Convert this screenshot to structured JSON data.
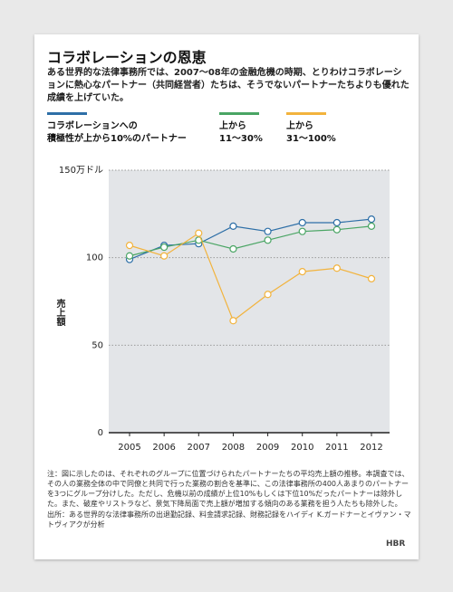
{
  "chart_data": {
    "type": "line",
    "title": "コラボレーションの恩恵",
    "subtitle": "ある世界的な法律事務所では、2007～08年の金融危機の時期、とりわけコラボレーションに熱心なパートナー（共同経営者）たちは、そうでないパートナーたちよりも優れた成績を上げていた。",
    "y_label": "売上額",
    "categories": [
      "2005",
      "2006",
      "2007",
      "2008",
      "2009",
      "2010",
      "2011",
      "2012"
    ],
    "series": [
      {
        "name": "コラボレーションへの\n積極性が上から10%のパートナー",
        "color": "#2e6fa7",
        "values": [
          99,
          107,
          108,
          118,
          115,
          120,
          120,
          122
        ]
      },
      {
        "name": "上から\n11～30%",
        "color": "#4aa564",
        "values": [
          101,
          106,
          110,
          105,
          110,
          115,
          116,
          118
        ]
      },
      {
        "name": "上から\n31～100%",
        "color": "#f2b33d",
        "values": [
          107,
          101,
          114,
          64,
          79,
          92,
          94,
          88
        ]
      }
    ],
    "ylim": [
      0,
      150
    ],
    "yticks": [
      0,
      50,
      100,
      {
        "value": 150,
        "label": "150万ドル"
      }
    ],
    "grid": true,
    "note": "注：図に示したのは、それぞれのグループに位置づけられたパートナーたちの平均売上額の推移。本調査では、その人の業務全体の中で同僚と共同で行った業務の割合を基準に、この法律事務所の400人あまりのパートナーを3つにグループ分けした。ただし、危機以前の成績が上位10%もしくは下位10%だったパートナーは除外した。また、破産やリストラなど、景気下降局面で売上額が増加する傾向のある業務を担う人たちも除外した。",
    "source": "出所：ある世界的な法律事務所の出退勤記録、料金請求記録、財務記録をハイディ K.ガードナーとイヴァン・マトヴィアクが分析",
    "logo": "HBR"
  }
}
